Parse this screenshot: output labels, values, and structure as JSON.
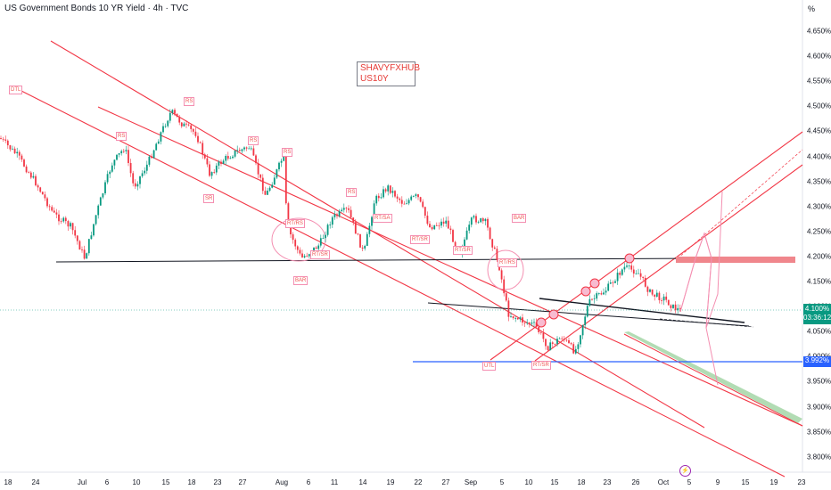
{
  "header": {
    "title": "US Government Bonds 10 YR Yield · 4h · TVC",
    "unit_label": "%"
  },
  "watermark": {
    "line1": "SHAVYFXHUB",
    "line2": "US10Y"
  },
  "price_axis": [
    "4.650%",
    "4.600%",
    "4.550%",
    "4.500%",
    "4.450%",
    "4.400%",
    "4.350%",
    "4.300%",
    "4.250%",
    "4.200%",
    "4.150%",
    "4.100%",
    "4.050%",
    "4.000%",
    "3.950%",
    "3.900%",
    "3.850%",
    "3.800%"
  ],
  "last_price": {
    "value": "4.100%",
    "countdown": "03:36:12"
  },
  "blue_level": "3.992%",
  "time_axis": [
    "18",
    "24",
    "Jul",
    "6",
    "10",
    "15",
    "18",
    "23",
    "27",
    "Aug",
    "6",
    "11",
    "14",
    "19",
    "22",
    "27",
    "Sep",
    "5",
    "10",
    "15",
    "18",
    "23",
    "26",
    "Oct",
    "5",
    "9",
    "15",
    "19",
    "23"
  ],
  "annotations": {
    "dtl": "DTL",
    "rs1": "RS",
    "rs2": "RS",
    "rs3": "RS",
    "rs4": "RS",
    "rs5": "RS",
    "rs6": "RS",
    "sr": "SR",
    "rtrs1": "RT/RS",
    "rtsr1": "RT/SR",
    "rtsa": "RT/SA",
    "rtsr2": "RT/SR",
    "rtsr3": "RT/SR",
    "rtrs2": "RT/RS",
    "bar1": "BAR",
    "bar2": "BAR",
    "utl": "UTL",
    "rtsr4": "RT/SR"
  },
  "colors": {
    "channel": "#f23645",
    "up": "#089981",
    "down": "#f23645",
    "blue_line": "#2962ff",
    "zone": "#f0868c",
    "green_zone": "#a5d6a7"
  }
}
